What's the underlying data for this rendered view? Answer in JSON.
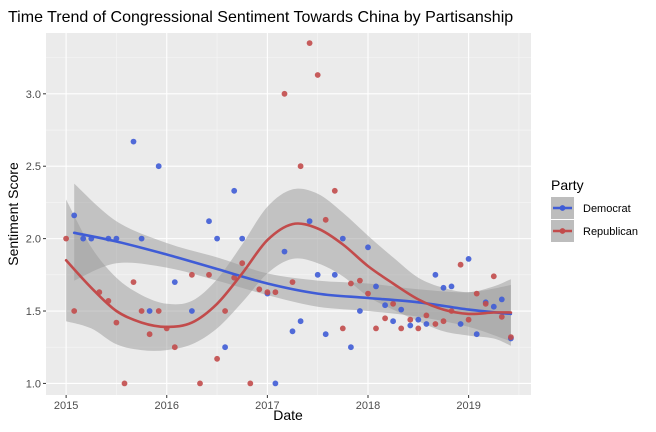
{
  "chart_data": {
    "type": "scatter",
    "title": "Time Trend of Congressional Sentiment Towards China by Partisanship",
    "xlabel": "Date",
    "ylabel": "Sentiment Score",
    "x_ticks": [
      "2015",
      "2016",
      "2017",
      "2018",
      "2019"
    ],
    "y_ticks": [
      "1.0",
      "1.5",
      "2.0",
      "2.5",
      "3.0"
    ],
    "xlim": [
      2014.8,
      2019.62
    ],
    "ylim": [
      0.92,
      3.42
    ],
    "grid": true,
    "legend": {
      "title": "Party",
      "placement": "right"
    },
    "series": [
      {
        "name": "Democrat",
        "color": "#3F5CD6",
        "points": [
          [
            2015.08,
            2.16
          ],
          [
            2015.17,
            2.0
          ],
          [
            2015.25,
            2.0
          ],
          [
            2015.42,
            2.0
          ],
          [
            2015.5,
            2.0
          ],
          [
            2015.67,
            2.67
          ],
          [
            2015.75,
            2.0
          ],
          [
            2015.83,
            1.5
          ],
          [
            2015.92,
            2.5
          ],
          [
            2016.08,
            1.7
          ],
          [
            2016.25,
            1.5
          ],
          [
            2016.42,
            2.12
          ],
          [
            2016.5,
            2.0
          ],
          [
            2016.58,
            1.25
          ],
          [
            2016.67,
            2.33
          ],
          [
            2016.75,
            2.0
          ],
          [
            2017.0,
            1.62
          ],
          [
            2017.08,
            1.0
          ],
          [
            2017.17,
            1.91
          ],
          [
            2017.25,
            1.36
          ],
          [
            2017.33,
            1.43
          ],
          [
            2017.42,
            2.12
          ],
          [
            2017.5,
            1.75
          ],
          [
            2017.58,
            1.34
          ],
          [
            2017.67,
            1.75
          ],
          [
            2017.75,
            2.0
          ],
          [
            2017.83,
            1.25
          ],
          [
            2017.92,
            1.5
          ],
          [
            2018.0,
            1.94
          ],
          [
            2018.08,
            1.67
          ],
          [
            2018.17,
            1.54
          ],
          [
            2018.25,
            1.43
          ],
          [
            2018.33,
            1.51
          ],
          [
            2018.42,
            1.4
          ],
          [
            2018.5,
            1.44
          ],
          [
            2018.58,
            1.41
          ],
          [
            2018.67,
            1.75
          ],
          [
            2018.75,
            1.66
          ],
          [
            2018.83,
            1.67
          ],
          [
            2018.92,
            1.41
          ],
          [
            2019.0,
            1.86
          ],
          [
            2019.08,
            1.34
          ],
          [
            2019.17,
            1.56
          ],
          [
            2019.25,
            1.53
          ],
          [
            2019.33,
            1.58
          ],
          [
            2019.42,
            1.31
          ]
        ],
        "trend": [
          [
            2015.08,
            2.04
          ],
          [
            2015.5,
            1.98
          ],
          [
            2016.0,
            1.89
          ],
          [
            2016.5,
            1.79
          ],
          [
            2017.0,
            1.69
          ],
          [
            2017.5,
            1.62
          ],
          [
            2018.0,
            1.59
          ],
          [
            2018.5,
            1.56
          ],
          [
            2019.0,
            1.51
          ],
          [
            2019.42,
            1.48
          ]
        ],
        "band_upper": [
          [
            2015.08,
            2.38
          ],
          [
            2015.5,
            2.12
          ],
          [
            2016.0,
            1.97
          ],
          [
            2016.5,
            1.87
          ],
          [
            2017.0,
            1.76
          ],
          [
            2017.5,
            1.71
          ],
          [
            2018.0,
            1.69
          ],
          [
            2018.5,
            1.65
          ],
          [
            2019.0,
            1.63
          ],
          [
            2019.42,
            1.68
          ]
        ],
        "band_lower": [
          [
            2015.08,
            1.71
          ],
          [
            2015.5,
            1.83
          ],
          [
            2016.0,
            1.8
          ],
          [
            2016.5,
            1.71
          ],
          [
            2017.0,
            1.61
          ],
          [
            2017.5,
            1.53
          ],
          [
            2018.0,
            1.5
          ],
          [
            2018.5,
            1.46
          ],
          [
            2019.0,
            1.39
          ],
          [
            2019.42,
            1.29
          ]
        ]
      },
      {
        "name": "Republican",
        "color": "#C24B4B",
        "points": [
          [
            2015.0,
            2.0
          ],
          [
            2015.08,
            1.5
          ],
          [
            2015.33,
            1.63
          ],
          [
            2015.42,
            1.57
          ],
          [
            2015.5,
            1.42
          ],
          [
            2015.58,
            1.0
          ],
          [
            2015.67,
            1.7
          ],
          [
            2015.75,
            1.5
          ],
          [
            2015.83,
            1.34
          ],
          [
            2015.92,
            1.5
          ],
          [
            2016.0,
            1.38
          ],
          [
            2016.08,
            1.25
          ],
          [
            2016.25,
            1.75
          ],
          [
            2016.33,
            1.0
          ],
          [
            2016.42,
            1.75
          ],
          [
            2016.5,
            1.17
          ],
          [
            2016.58,
            1.5
          ],
          [
            2016.67,
            1.73
          ],
          [
            2016.75,
            1.83
          ],
          [
            2016.83,
            1.0
          ],
          [
            2016.92,
            1.65
          ],
          [
            2017.0,
            1.63
          ],
          [
            2017.08,
            1.63
          ],
          [
            2017.17,
            3.0
          ],
          [
            2017.25,
            1.7
          ],
          [
            2017.33,
            2.5
          ],
          [
            2017.42,
            3.35
          ],
          [
            2017.5,
            3.13
          ],
          [
            2017.58,
            2.13
          ],
          [
            2017.67,
            2.33
          ],
          [
            2017.75,
            1.38
          ],
          [
            2017.83,
            1.69
          ],
          [
            2017.92,
            1.71
          ],
          [
            2018.0,
            1.62
          ],
          [
            2018.08,
            1.38
          ],
          [
            2018.17,
            1.45
          ],
          [
            2018.25,
            1.55
          ],
          [
            2018.33,
            1.38
          ],
          [
            2018.42,
            1.44
          ],
          [
            2018.5,
            1.38
          ],
          [
            2018.58,
            1.47
          ],
          [
            2018.67,
            1.41
          ],
          [
            2018.75,
            1.43
          ],
          [
            2018.83,
            1.5
          ],
          [
            2018.92,
            1.82
          ],
          [
            2019.0,
            1.44
          ],
          [
            2019.08,
            1.62
          ],
          [
            2019.17,
            1.55
          ],
          [
            2019.25,
            1.74
          ],
          [
            2019.33,
            1.46
          ],
          [
            2019.42,
            1.32
          ]
        ],
        "trend": [
          [
            2015.0,
            1.85
          ],
          [
            2015.25,
            1.66
          ],
          [
            2015.5,
            1.5
          ],
          [
            2015.75,
            1.42
          ],
          [
            2016.0,
            1.39
          ],
          [
            2016.25,
            1.42
          ],
          [
            2016.5,
            1.55
          ],
          [
            2016.75,
            1.76
          ],
          [
            2017.0,
            1.99
          ],
          [
            2017.25,
            2.1
          ],
          [
            2017.5,
            2.07
          ],
          [
            2017.75,
            1.96
          ],
          [
            2018.0,
            1.81
          ],
          [
            2018.25,
            1.69
          ],
          [
            2018.5,
            1.58
          ],
          [
            2018.75,
            1.51
          ],
          [
            2019.0,
            1.48
          ],
          [
            2019.25,
            1.49
          ],
          [
            2019.42,
            1.49
          ]
        ],
        "band_upper": [
          [
            2015.0,
            2.27
          ],
          [
            2015.25,
            1.94
          ],
          [
            2015.5,
            1.73
          ],
          [
            2015.75,
            1.61
          ],
          [
            2016.0,
            1.55
          ],
          [
            2016.25,
            1.57
          ],
          [
            2016.5,
            1.72
          ],
          [
            2016.75,
            1.96
          ],
          [
            2017.0,
            2.22
          ],
          [
            2017.25,
            2.34
          ],
          [
            2017.5,
            2.31
          ],
          [
            2017.75,
            2.18
          ],
          [
            2018.0,
            2.02
          ],
          [
            2018.25,
            1.87
          ],
          [
            2018.5,
            1.73
          ],
          [
            2018.75,
            1.66
          ],
          [
            2019.0,
            1.63
          ],
          [
            2019.25,
            1.67
          ],
          [
            2019.42,
            1.72
          ]
        ],
        "band_lower": [
          [
            2015.0,
            1.43
          ],
          [
            2015.25,
            1.38
          ],
          [
            2015.5,
            1.27
          ],
          [
            2015.75,
            1.23
          ],
          [
            2016.0,
            1.23
          ],
          [
            2016.25,
            1.27
          ],
          [
            2016.5,
            1.38
          ],
          [
            2016.75,
            1.56
          ],
          [
            2017.0,
            1.76
          ],
          [
            2017.25,
            1.86
          ],
          [
            2017.5,
            1.83
          ],
          [
            2017.75,
            1.74
          ],
          [
            2018.0,
            1.6
          ],
          [
            2018.25,
            1.51
          ],
          [
            2018.5,
            1.43
          ],
          [
            2018.75,
            1.36
          ],
          [
            2019.0,
            1.33
          ],
          [
            2019.25,
            1.31
          ],
          [
            2019.42,
            1.26
          ]
        ]
      }
    ]
  }
}
